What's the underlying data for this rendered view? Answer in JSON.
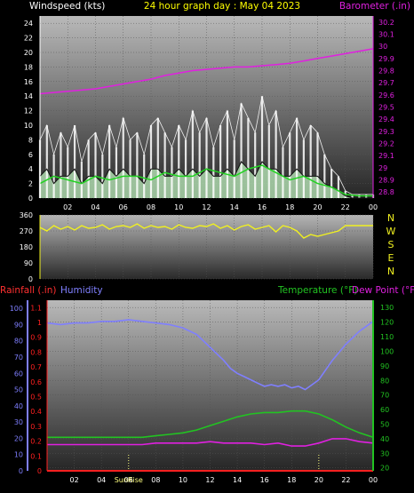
{
  "header": {
    "left_label": "Windspeed (kts)",
    "center_title": "24 hour graph day : May 04 2023",
    "right_label": "Barometer (.in)"
  },
  "colors": {
    "background": "#000000",
    "wind_avg": "#ffffff",
    "wind_gust": "#ffffff",
    "wind_light": "#bff0bf",
    "wind_green": "#22d322",
    "barometer": "#e020e0",
    "direction": "#f0f020",
    "humidity": "#7f7fff",
    "temperature": "#22c322",
    "dewpoint": "#e020e0",
    "rainfall": "#ff2020",
    "sun": "#ffff80"
  },
  "chart_data": [
    {
      "type": "line",
      "name": "wind_barometer",
      "x_ticks": [
        "02",
        "04",
        "06",
        "08",
        "10",
        "12",
        "14",
        "16",
        "18",
        "20",
        "22",
        "00"
      ],
      "xlim": [
        0,
        24
      ],
      "y_left_ticks": [
        "0",
        "2",
        "4",
        "6",
        "8",
        "10",
        "12",
        "14",
        "16",
        "18",
        "20",
        "22",
        "24"
      ],
      "ylim_left": [
        0,
        25
      ],
      "y_right_ticks": [
        "28.8",
        "28.9",
        "29",
        "29.1",
        "29.2",
        "29.3",
        "29.4",
        "29.5",
        "29.6",
        "29.7",
        "29.8",
        "29.9",
        "30",
        "30.1",
        "30.2"
      ],
      "ylim_right": [
        28.75,
        30.25
      ],
      "series": [
        {
          "key": "barometer",
          "axis": "right",
          "x": [
            0,
            1,
            2,
            3,
            4,
            5,
            6,
            7,
            8,
            9,
            10,
            11,
            12,
            13,
            14,
            15,
            16,
            17,
            18,
            19,
            20,
            21,
            22,
            23,
            24
          ],
          "values": [
            29.61,
            29.62,
            29.63,
            29.64,
            29.65,
            29.67,
            29.69,
            29.71,
            29.73,
            29.76,
            29.78,
            29.8,
            29.81,
            29.82,
            29.83,
            29.83,
            29.84,
            29.85,
            29.86,
            29.88,
            29.9,
            29.92,
            29.94,
            29.96,
            29.98
          ]
        },
        {
          "key": "wind_gust",
          "axis": "left",
          "x": [
            0,
            0.5,
            1,
            1.5,
            2,
            2.5,
            3,
            3.5,
            4,
            4.5,
            5,
            5.5,
            6,
            6.5,
            7,
            7.5,
            8,
            8.5,
            9,
            9.5,
            10,
            10.5,
            11,
            11.5,
            12,
            12.5,
            13,
            13.5,
            14,
            14.5,
            15,
            15.5,
            16,
            16.5,
            17,
            17.5,
            18,
            18.5,
            19,
            19.5,
            20,
            20.5,
            21,
            21.5,
            22,
            22.5,
            23,
            23.5,
            24
          ],
          "values": [
            8,
            10,
            6,
            9,
            7,
            10,
            5,
            8,
            9,
            6,
            10,
            7,
            11,
            8,
            9,
            6,
            10,
            11,
            9,
            7,
            10,
            8,
            12,
            9,
            11,
            7,
            10,
            12,
            8,
            13,
            11,
            9,
            14,
            10,
            12,
            7,
            9,
            11,
            8,
            10,
            9,
            6,
            4,
            3,
            1,
            0.5,
            0.5,
            0.5,
            0.5
          ]
        },
        {
          "key": "wind_avg",
          "axis": "left",
          "x": [
            0,
            0.5,
            1,
            1.5,
            2,
            2.5,
            3,
            3.5,
            4,
            4.5,
            5,
            5.5,
            6,
            6.5,
            7,
            7.5,
            8,
            8.5,
            9,
            9.5,
            10,
            10.5,
            11,
            11.5,
            12,
            12.5,
            13,
            13.5,
            14,
            14.5,
            15,
            15.5,
            16,
            16.5,
            17,
            17.5,
            18,
            18.5,
            19,
            19.5,
            20,
            20.5,
            21,
            21.5,
            22,
            22.5,
            23,
            23.5,
            24
          ],
          "values": [
            3,
            4,
            2,
            3,
            3,
            4,
            2,
            3,
            3,
            2,
            4,
            3,
            4,
            3,
            3,
            2,
            4,
            4,
            3,
            3,
            4,
            3,
            4,
            3,
            4,
            3,
            3,
            4,
            3,
            5,
            4,
            3,
            5,
            4,
            4,
            3,
            3,
            4,
            3,
            3,
            3,
            2,
            1.5,
            1,
            0.3,
            0,
            0,
            0,
            0
          ]
        },
        {
          "key": "wind_green",
          "axis": "left",
          "x": [
            0,
            1,
            2,
            3,
            4,
            5,
            6,
            7,
            8,
            9,
            10,
            11,
            12,
            13,
            14,
            15,
            16,
            17,
            18,
            19,
            20,
            21,
            22,
            23,
            24
          ],
          "values": [
            2,
            3,
            2.5,
            2,
            3,
            2.5,
            3,
            3,
            2.5,
            3.5,
            3,
            3,
            4,
            3.5,
            3,
            4,
            4.5,
            3.5,
            2.5,
            3,
            2,
            1.5,
            0.5,
            0.3,
            0.3
          ]
        }
      ]
    },
    {
      "type": "line",
      "name": "wind_direction",
      "xlim": [
        0,
        24
      ],
      "y_ticks": [
        "0",
        "90",
        "180",
        "270",
        "360"
      ],
      "ylim": [
        0,
        360
      ],
      "compass_labels": [
        "N",
        "W",
        "S",
        "E",
        "N"
      ],
      "series": [
        {
          "key": "direction",
          "x": [
            0,
            0.5,
            1,
            1.5,
            2,
            2.5,
            3,
            3.5,
            4,
            4.5,
            5,
            5.5,
            6,
            6.5,
            7,
            7.5,
            8,
            8.5,
            9,
            9.5,
            10,
            10.5,
            11,
            11.5,
            12,
            12.5,
            13,
            13.5,
            14,
            14.5,
            15,
            15.5,
            16,
            16.5,
            17,
            17.5,
            18,
            18.5,
            19,
            19.5,
            20,
            20.5,
            21,
            21.5,
            22,
            22.5,
            23,
            23.5,
            24
          ],
          "values": [
            290,
            270,
            300,
            280,
            295,
            275,
            300,
            285,
            290,
            305,
            280,
            295,
            300,
            290,
            310,
            285,
            300,
            290,
            295,
            280,
            305,
            290,
            285,
            300,
            295,
            310,
            285,
            300,
            275,
            295,
            305,
            280,
            290,
            300,
            265,
            300,
            290,
            270,
            230,
            250,
            240,
            250,
            260,
            270,
            300,
            300,
            300,
            300,
            300
          ]
        }
      ]
    },
    {
      "type": "line",
      "name": "humidity_temperature",
      "x_ticks": [
        "02",
        "04",
        "06",
        "08",
        "10",
        "12",
        "14",
        "16",
        "18",
        "20",
        "22",
        "00"
      ],
      "xlim": [
        0,
        24
      ],
      "labels": {
        "rainfall": "Rainfall (.in)",
        "humidity": "Humidity",
        "temperature": "Temperature (°F)",
        "dewpoint": "Dew Point (°F)",
        "sunrise": "SunRise",
        "sunset": ""
      },
      "y_humidity_ticks": [
        "0",
        "10",
        "20",
        "30",
        "40",
        "50",
        "60",
        "70",
        "80",
        "90",
        "100"
      ],
      "ylim_humidity": [
        0,
        105
      ],
      "y_rain_ticks": [
        "0",
        "0.1",
        "0.2",
        "0.3",
        "0.4",
        "0.5",
        "0.6",
        "0.7",
        "0.8",
        "0.9",
        "1",
        "1.1"
      ],
      "ylim_rain": [
        0,
        1.15
      ],
      "y_temp_ticks": [
        "20",
        "30",
        "40",
        "50",
        "60",
        "70",
        "80",
        "90",
        "100",
        "110",
        "120",
        "130"
      ],
      "ylim_temp": [
        18,
        135
      ],
      "sunrise_hour": 6,
      "sunset_hour": 20,
      "series": [
        {
          "key": "humidity",
          "axis": "humidity",
          "x": [
            0,
            1,
            2,
            3,
            4,
            5,
            6,
            7,
            8,
            9,
            10,
            11,
            11.5,
            12,
            12.5,
            13,
            13.5,
            14,
            14.5,
            15,
            15.5,
            16,
            16.5,
            17,
            17.5,
            18,
            18.5,
            19,
            19.5,
            20,
            20.5,
            21,
            21.5,
            22,
            22.5,
            23,
            23.5,
            24
          ],
          "values": [
            91,
            90,
            91,
            91,
            92,
            92,
            93,
            92,
            91,
            90,
            88,
            84,
            80,
            76,
            72,
            68,
            63,
            60,
            58,
            56,
            54,
            52,
            53,
            52,
            53,
            51,
            52,
            50,
            53,
            56,
            62,
            68,
            73,
            78,
            82,
            86,
            89,
            92
          ]
        },
        {
          "key": "temperature",
          "axis": "temp",
          "x": [
            0,
            1,
            2,
            3,
            4,
            5,
            6,
            7,
            8,
            9,
            10,
            11,
            12,
            13,
            14,
            15,
            16,
            17,
            18,
            19,
            20,
            21,
            22,
            23,
            24
          ],
          "values": [
            41,
            41,
            41,
            41,
            41,
            41,
            41,
            41,
            42,
            43,
            44,
            46,
            49,
            52,
            55,
            57,
            58,
            58,
            59,
            59,
            57,
            53,
            48,
            44,
            41
          ]
        },
        {
          "key": "dewpoint",
          "axis": "temp",
          "x": [
            0,
            1,
            2,
            3,
            4,
            5,
            6,
            7,
            8,
            9,
            10,
            11,
            12,
            13,
            14,
            15,
            16,
            17,
            18,
            19,
            20,
            21,
            22,
            23,
            24
          ],
          "values": [
            36,
            36,
            36,
            36,
            36,
            36,
            36,
            36,
            37,
            37,
            37,
            37,
            38,
            37,
            37,
            37,
            36,
            37,
            35,
            35,
            37,
            40,
            40,
            38,
            37
          ]
        },
        {
          "key": "rainfall",
          "axis": "rain",
          "x": [
            0,
            24
          ],
          "values": [
            0,
            0
          ]
        }
      ]
    }
  ]
}
